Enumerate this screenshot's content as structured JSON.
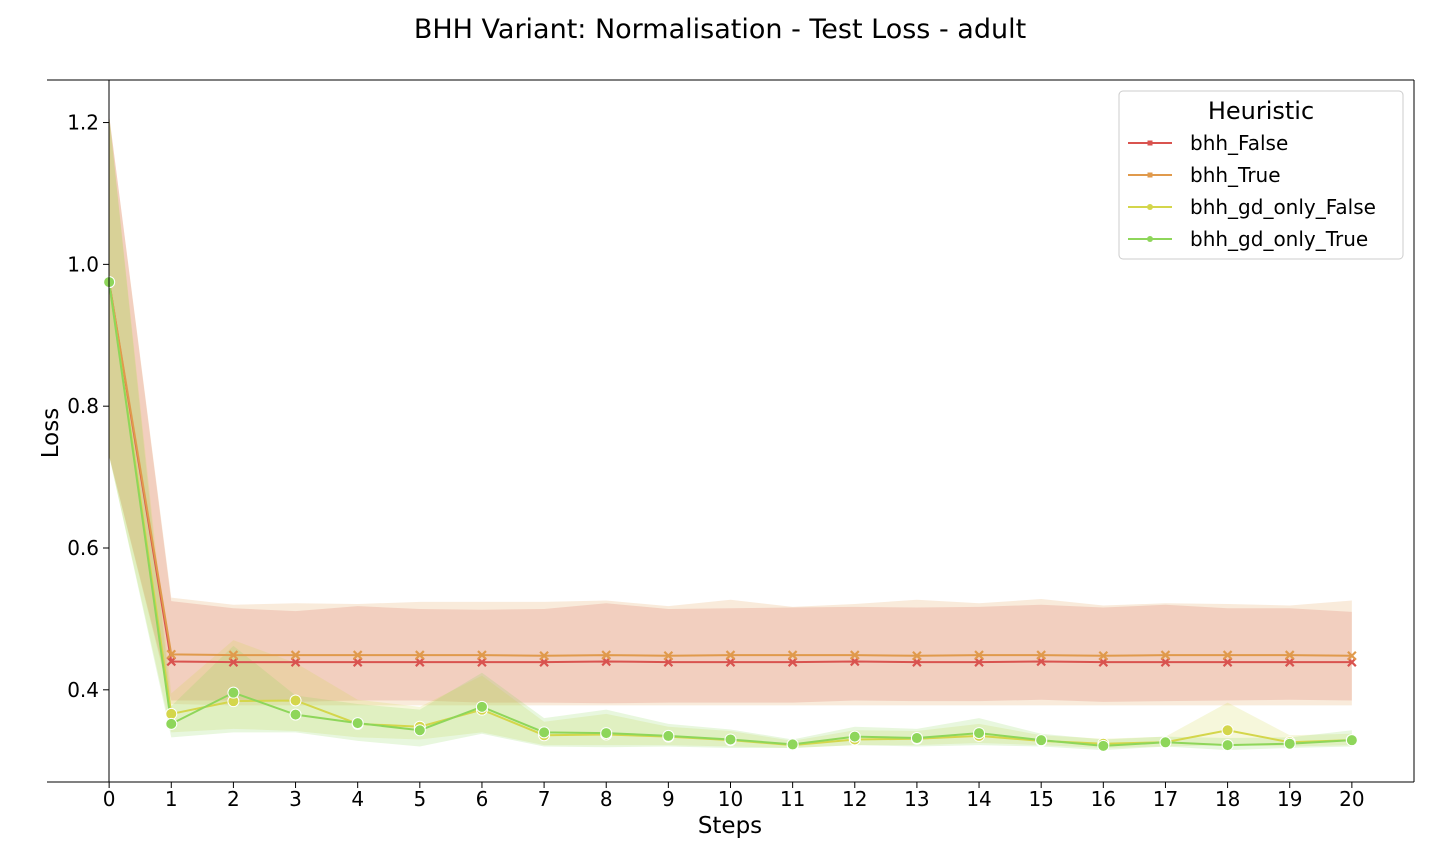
{
  "chart_data": {
    "type": "line",
    "title": "BHH Variant: Normalisation - Test Loss - adult",
    "xlabel": "Steps",
    "ylabel": "Loss",
    "xlim": [
      -1,
      21
    ],
    "ylim": [
      0.27,
      1.26
    ],
    "x": [
      0,
      1,
      2,
      3,
      4,
      5,
      6,
      7,
      8,
      9,
      10,
      11,
      12,
      13,
      14,
      15,
      16,
      17,
      18,
      19,
      20
    ],
    "x_ticks": [
      "0",
      "1",
      "2",
      "3",
      "4",
      "5",
      "6",
      "7",
      "8",
      "9",
      "10",
      "11",
      "12",
      "13",
      "14",
      "15",
      "16",
      "17",
      "18",
      "19",
      "20"
    ],
    "y_ticks": [
      "0.4",
      "0.6",
      "0.8",
      "1.0",
      "1.2"
    ],
    "y_tick_values": [
      0.4,
      0.6,
      0.8,
      1.0,
      1.2
    ],
    "grid": false,
    "legend": {
      "title": "Heuristic",
      "placement": "top-right"
    },
    "series": [
      {
        "name": "bhh_False",
        "color": "#d9534f",
        "marker": "x",
        "values": [
          0.975,
          0.44,
          0.439,
          0.439,
          0.439,
          0.439,
          0.439,
          0.439,
          0.44,
          0.439,
          0.439,
          0.439,
          0.44,
          0.439,
          0.439,
          0.44,
          0.439,
          0.439,
          0.439,
          0.439,
          0.439
        ],
        "lower": [
          0.73,
          0.385,
          0.385,
          0.383,
          0.385,
          0.385,
          0.382,
          0.382,
          0.381,
          0.382,
          0.382,
          0.382,
          0.385,
          0.384,
          0.384,
          0.386,
          0.383,
          0.384,
          0.385,
          0.386,
          0.385
        ],
        "upper": [
          1.21,
          0.525,
          0.515,
          0.511,
          0.518,
          0.514,
          0.513,
          0.514,
          0.522,
          0.514,
          0.515,
          0.516,
          0.517,
          0.516,
          0.517,
          0.52,
          0.516,
          0.52,
          0.515,
          0.515,
          0.51
        ]
      },
      {
        "name": "bhh_True",
        "color": "#e09a4c",
        "marker": "x",
        "values": [
          0.975,
          0.45,
          0.449,
          0.449,
          0.449,
          0.449,
          0.449,
          0.448,
          0.449,
          0.448,
          0.449,
          0.449,
          0.449,
          0.448,
          0.449,
          0.449,
          0.448,
          0.449,
          0.449,
          0.449,
          0.448
        ],
        "lower": [
          0.73,
          0.38,
          0.378,
          0.378,
          0.378,
          0.378,
          0.378,
          0.378,
          0.378,
          0.378,
          0.378,
          0.378,
          0.378,
          0.378,
          0.378,
          0.378,
          0.378,
          0.378,
          0.378,
          0.378,
          0.378
        ],
        "upper": [
          1.21,
          0.53,
          0.52,
          0.522,
          0.521,
          0.524,
          0.524,
          0.524,
          0.526,
          0.518,
          0.527,
          0.517,
          0.521,
          0.527,
          0.522,
          0.528,
          0.519,
          0.522,
          0.521,
          0.519,
          0.526
        ]
      },
      {
        "name": "bhh_gd_only_False",
        "color": "#d4d64b",
        "marker": "o",
        "values": [
          0.975,
          0.366,
          0.384,
          0.385,
          0.352,
          0.348,
          0.372,
          0.336,
          0.337,
          0.334,
          0.329,
          0.322,
          0.33,
          0.331,
          0.335,
          0.328,
          0.324,
          0.326,
          0.343,
          0.326,
          0.329
        ],
        "lower": [
          0.73,
          0.34,
          0.345,
          0.342,
          0.333,
          0.33,
          0.34,
          0.322,
          0.322,
          0.322,
          0.32,
          0.318,
          0.322,
          0.322,
          0.325,
          0.322,
          0.318,
          0.32,
          0.322,
          0.32,
          0.322
        ],
        "upper": [
          1.21,
          0.395,
          0.47,
          0.438,
          0.386,
          0.376,
          0.42,
          0.355,
          0.366,
          0.348,
          0.342,
          0.328,
          0.343,
          0.342,
          0.352,
          0.336,
          0.331,
          0.334,
          0.382,
          0.336,
          0.338
        ]
      },
      {
        "name": "bhh_gd_only_True",
        "color": "#8ed65a",
        "marker": "o",
        "values": [
          0.975,
          0.352,
          0.396,
          0.365,
          0.353,
          0.343,
          0.376,
          0.34,
          0.339,
          0.335,
          0.33,
          0.323,
          0.334,
          0.332,
          0.339,
          0.329,
          0.321,
          0.326,
          0.322,
          0.324,
          0.329
        ],
        "lower": [
          0.73,
          0.333,
          0.34,
          0.34,
          0.328,
          0.32,
          0.338,
          0.32,
          0.319,
          0.32,
          0.318,
          0.318,
          0.322,
          0.32,
          0.322,
          0.32,
          0.315,
          0.32,
          0.315,
          0.318,
          0.32
        ],
        "upper": [
          1.21,
          0.377,
          0.462,
          0.392,
          0.38,
          0.372,
          0.424,
          0.36,
          0.372,
          0.352,
          0.344,
          0.33,
          0.348,
          0.345,
          0.36,
          0.338,
          0.33,
          0.334,
          0.332,
          0.333,
          0.343
        ]
      }
    ]
  }
}
